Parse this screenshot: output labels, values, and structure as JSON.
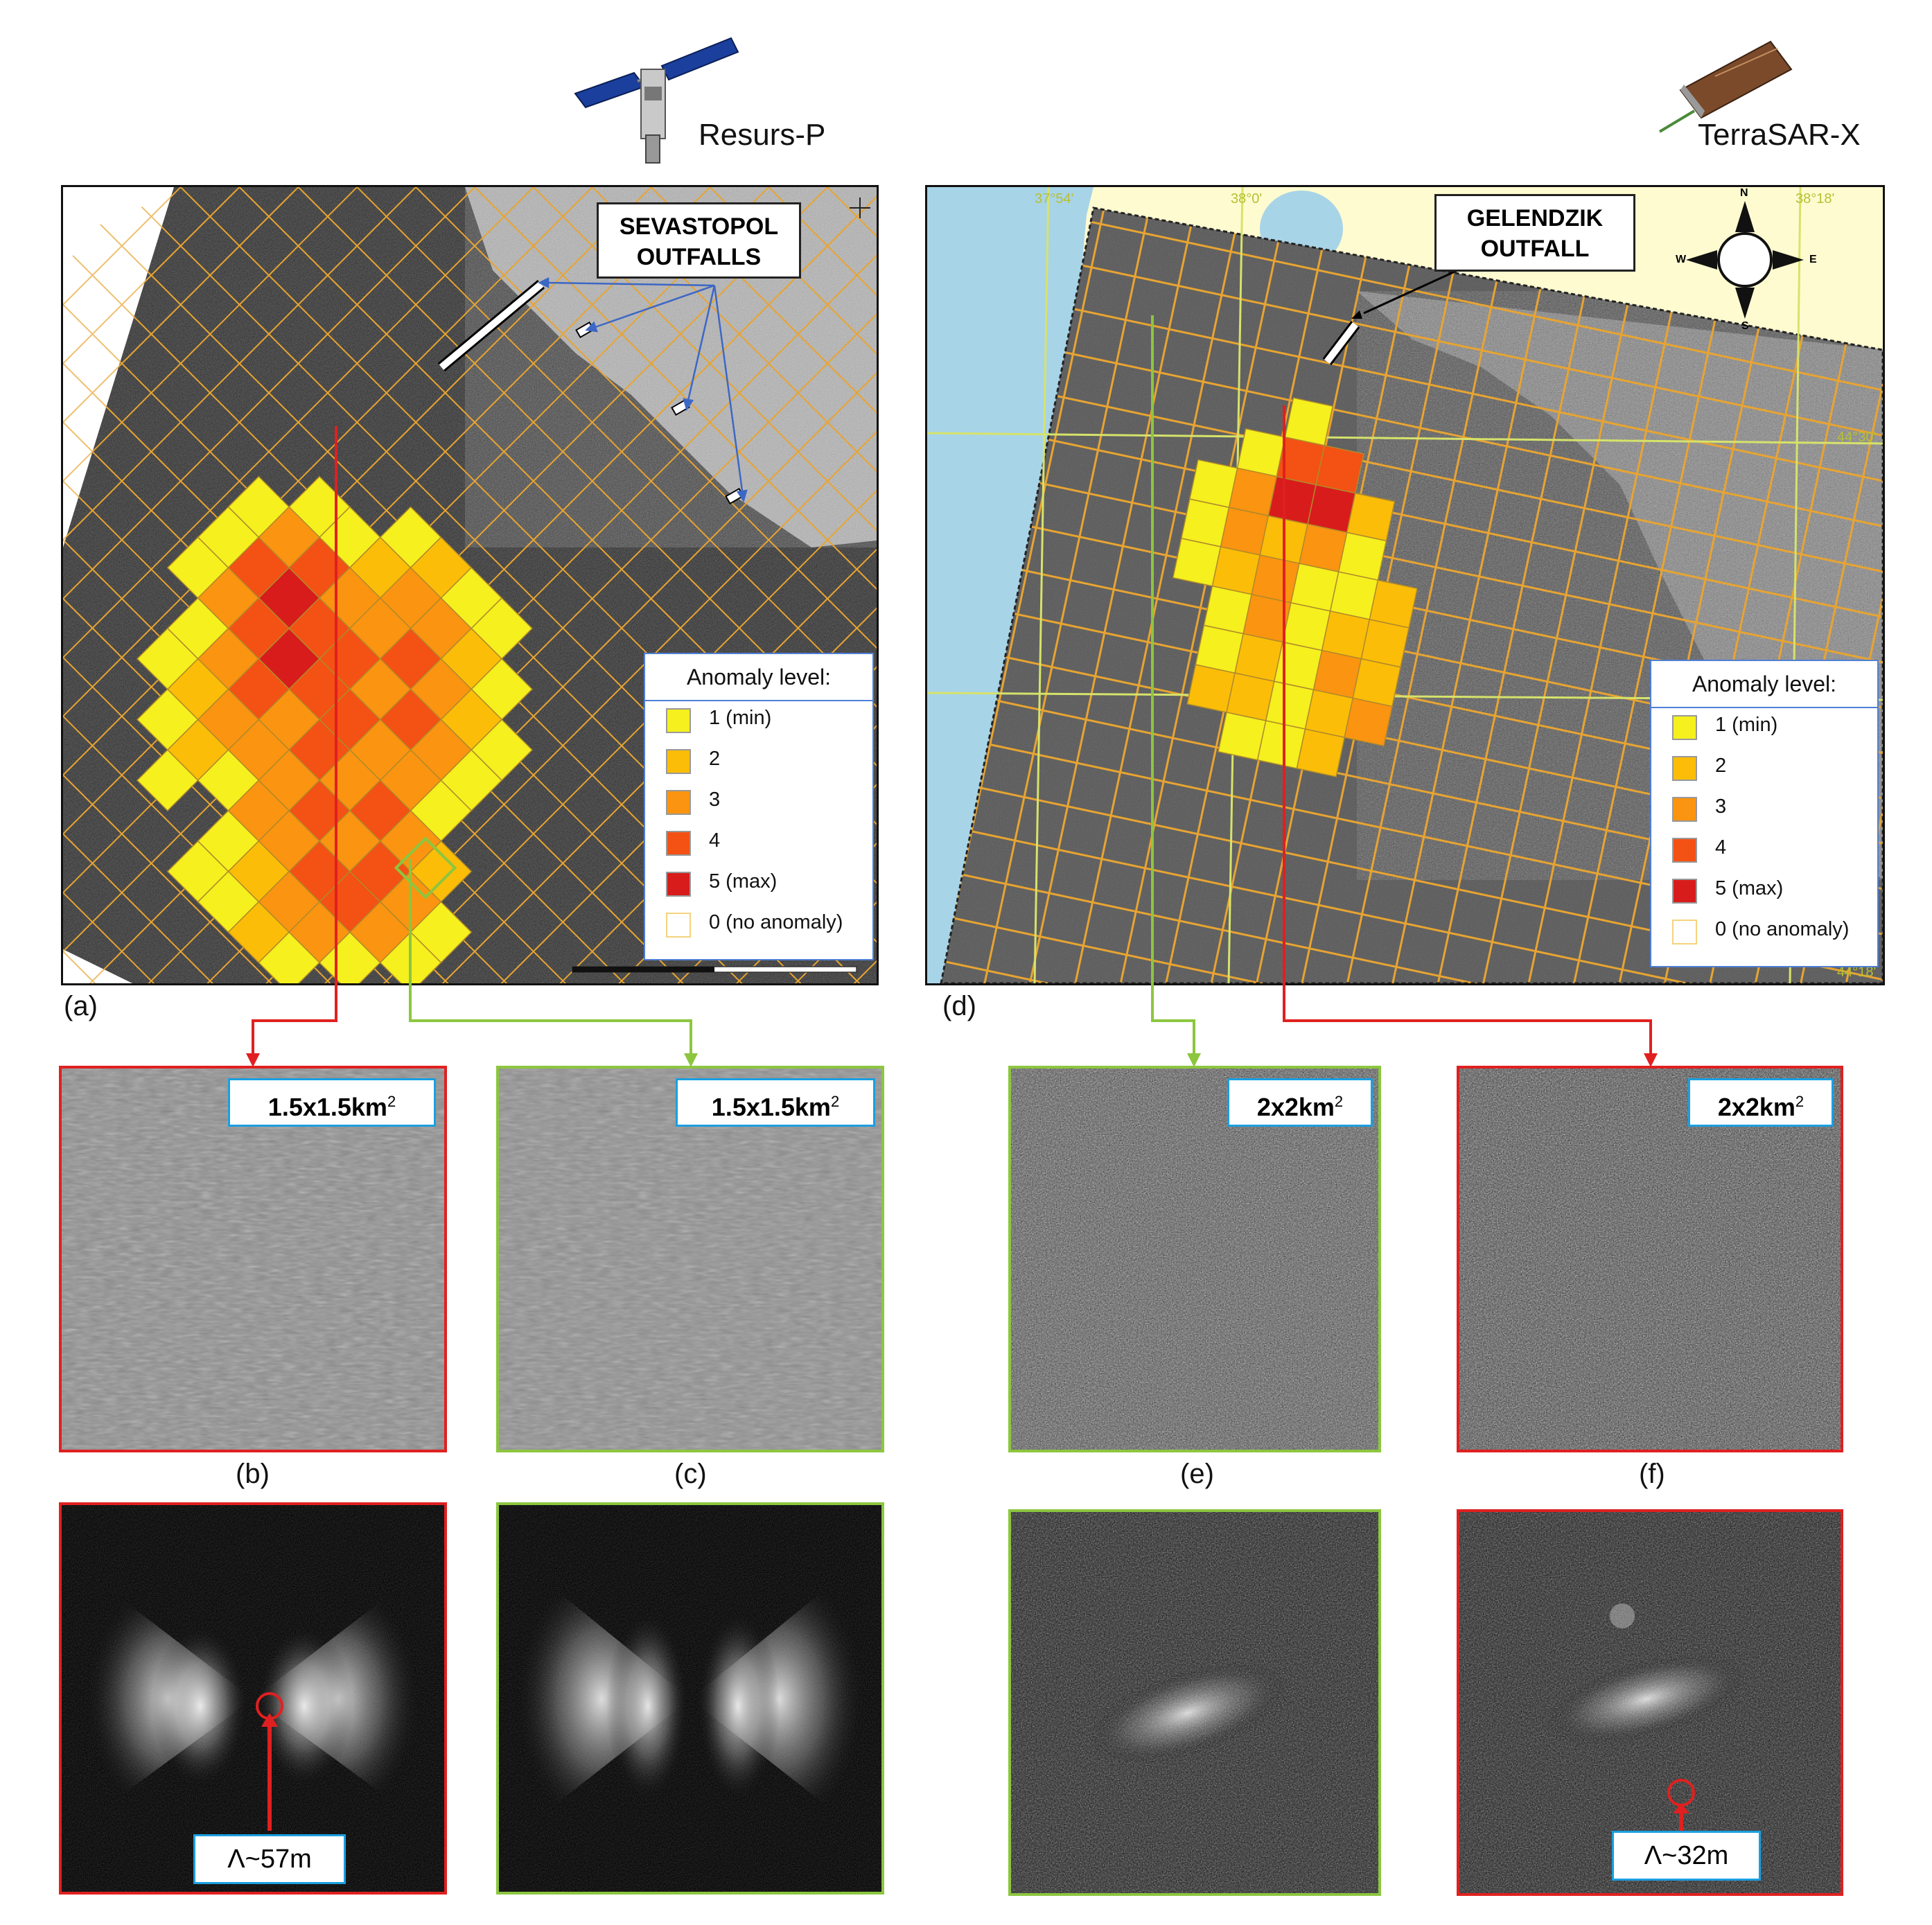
{
  "satellites": {
    "left": {
      "name": "Resurs-P",
      "icon": "satellite-resurs-icon"
    },
    "right": {
      "name": "TerraSAR-X",
      "icon": "satellite-terrasar-icon"
    }
  },
  "map_left": {
    "callout_line1": "SEVASTOPOL",
    "callout_line2": "OUTFALLS",
    "panel_label": "(a)"
  },
  "map_right": {
    "callout_line1": "GELENDZIK",
    "callout_line2": "OUTFALL",
    "panel_label": "(d)",
    "coord_labels": [
      "37°54'",
      "38°0'",
      "38°18'",
      "44°30'",
      "44°18'"
    ],
    "compass": {
      "n": "N",
      "s": "S",
      "e": "E",
      "w": "W"
    }
  },
  "legend": {
    "title": "Anomaly level:",
    "items": [
      {
        "label": "1 (min)",
        "color": "#f5f01e"
      },
      {
        "label": "2",
        "color": "#fbbd08"
      },
      {
        "label": "3",
        "color": "#fb9410"
      },
      {
        "label": "4",
        "color": "#f45114"
      },
      {
        "label": "5 (max)",
        "color": "#d81c1c"
      },
      {
        "label": "0 (no anomaly)",
        "color": "#ffffff"
      }
    ]
  },
  "patches": {
    "b": {
      "label": "(b)",
      "scale_text": "1.5x1.5km",
      "scale_sup": "2"
    },
    "c": {
      "label": "(c)",
      "scale_text": "1.5x1.5km",
      "scale_sup": "2"
    },
    "e": {
      "label": "(e)",
      "scale_text": "2x2km",
      "scale_sup": "2"
    },
    "f": {
      "label": "(f)",
      "scale_text": "2x2km",
      "scale_sup": "2"
    }
  },
  "spectra": {
    "b_wavelength": "Λ~57m",
    "f_wavelength": "Λ~32m"
  },
  "colors": {
    "anomaly_frame": "#e02020",
    "reference_frame": "#8cc63f",
    "grid_line": "#e8a431",
    "callout_blue": "#1a9fe0"
  }
}
